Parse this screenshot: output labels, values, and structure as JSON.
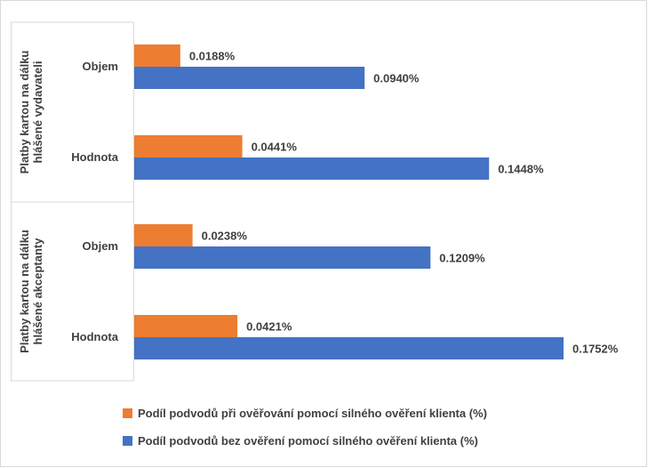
{
  "chart_data": {
    "type": "bar",
    "orientation": "horizontal",
    "groups": [
      {
        "label": "Platby kartou na dálku hlášené vydavateli",
        "lines": [
          "Platby kartou na dálku",
          "hlášené vydavateli"
        ],
        "categories": [
          "Objem",
          "Hodnota"
        ]
      },
      {
        "label": "Platby kartou na dálku hlášené akceptanty",
        "lines": [
          "Platby kartou na dálku",
          "hlášené akceptanty"
        ],
        "categories": [
          "Objem",
          "Hodnota"
        ]
      }
    ],
    "series": [
      {
        "name": "Podíl podvodů při ověřování pomocí silného ověření klienta (%)",
        "color": "#ED7D31",
        "values": [
          0.0188,
          0.0441,
          0.0238,
          0.0421
        ],
        "labels": [
          "0.0188%",
          "0.0441%",
          "0.0238%",
          "0.0421%"
        ]
      },
      {
        "name": "Podíl podvodů bez ověření pomocí silného ověření klienta (%)",
        "color": "#4472C4",
        "values": [
          0.094,
          0.1448,
          0.1209,
          0.1752
        ],
        "labels": [
          "0.0940%",
          "0.1448%",
          "0.1209%",
          "0.1752%"
        ]
      }
    ],
    "xlim": [
      0,
      0.1752
    ],
    "grid": false,
    "legend_position": "bottom"
  }
}
